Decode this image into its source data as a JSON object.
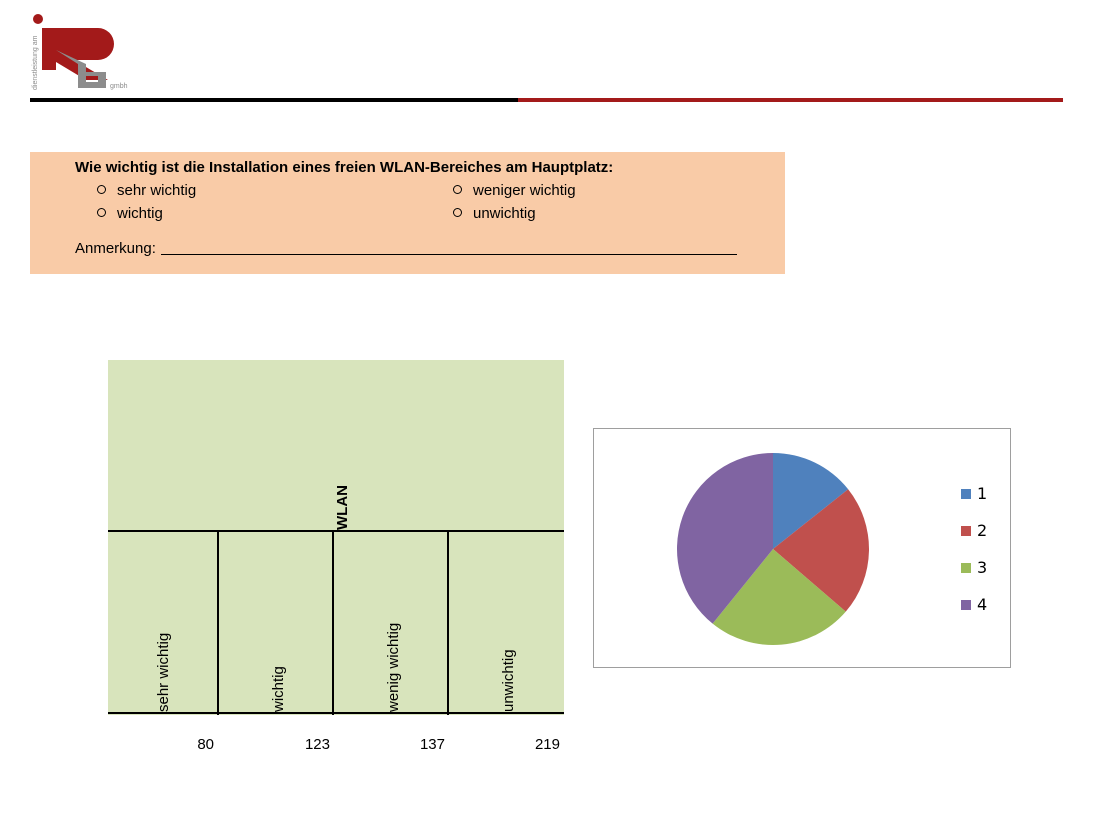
{
  "logo": {
    "vertical_text": "dienstleistung am",
    "small_text": "gmbh",
    "colors": {
      "red": "#a31a1a",
      "gray": "#8c8c8c"
    }
  },
  "rule_colors": {
    "left": "#000000",
    "right": "#a31a1a"
  },
  "question": {
    "text": "Wie wichtig ist die Installation eines freien WLAN-Bereiches am Hauptplatz:",
    "options": [
      "sehr wichtig",
      "weniger wichtig",
      "wichtig",
      "unwichtig"
    ],
    "annotation_label": "Anmerkung:",
    "background": "#f9cba7"
  },
  "chart_data": [
    {
      "type": "table",
      "title": "WLAN",
      "categories": [
        "sehr wichtig",
        "wichtig",
        "wenig wichtig",
        "unwichtig"
      ],
      "values": [
        80,
        123,
        137,
        219
      ],
      "background": "#d8e4bc"
    },
    {
      "type": "pie",
      "categories": [
        "1",
        "2",
        "3",
        "4"
      ],
      "values": [
        80,
        123,
        137,
        219
      ],
      "colors": [
        "#4f81bd",
        "#c0504d",
        "#9bbb59",
        "#8064a2"
      ],
      "legend": "right"
    }
  ]
}
